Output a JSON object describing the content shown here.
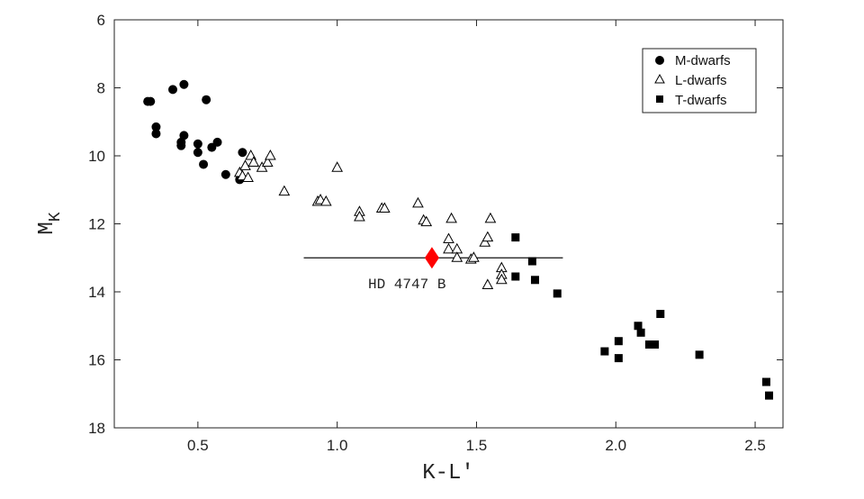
{
  "chart_data": {
    "type": "scatter",
    "xlabel": "K-L'",
    "ylabel": "M",
    "ylabel_sub": "K",
    "xlim": [
      0.2,
      2.6
    ],
    "ylim": [
      18,
      6
    ],
    "y_inverted": true,
    "xticks": [
      0.5,
      1.0,
      1.5,
      2.0,
      2.5
    ],
    "xtick_labels": [
      "0.5",
      "1.0",
      "1.5",
      "2.0",
      "2.5"
    ],
    "yticks": [
      6,
      8,
      10,
      12,
      14,
      16,
      18
    ],
    "ytick_labels": [
      "6",
      "8",
      "10",
      "12",
      "14",
      "16",
      "18"
    ],
    "grid": false,
    "legend_position": "top-right",
    "series": [
      {
        "name": "M-dwarfs",
        "marker": "filled-circle",
        "color": "#000000",
        "points": [
          [
            0.32,
            8.4
          ],
          [
            0.33,
            8.4
          ],
          [
            0.35,
            9.15
          ],
          [
            0.35,
            9.35
          ],
          [
            0.41,
            8.05
          ],
          [
            0.45,
            7.9
          ],
          [
            0.45,
            9.4
          ],
          [
            0.44,
            9.6
          ],
          [
            0.44,
            9.7
          ],
          [
            0.5,
            9.65
          ],
          [
            0.5,
            9.9
          ],
          [
            0.53,
            8.35
          ],
          [
            0.55,
            9.75
          ],
          [
            0.57,
            9.6
          ],
          [
            0.52,
            10.25
          ],
          [
            0.6,
            10.55
          ],
          [
            0.65,
            10.7
          ],
          [
            0.66,
            9.9
          ]
        ]
      },
      {
        "name": "L-dwarfs",
        "marker": "open-triangle",
        "color": "#000000",
        "points": [
          [
            0.65,
            10.5
          ],
          [
            0.66,
            10.6
          ],
          [
            0.67,
            10.3
          ],
          [
            0.68,
            10.65
          ],
          [
            0.69,
            10.0
          ],
          [
            0.7,
            10.2
          ],
          [
            0.73,
            10.35
          ],
          [
            0.75,
            10.2
          ],
          [
            0.76,
            10.0
          ],
          [
            0.81,
            11.05
          ],
          [
            0.93,
            11.35
          ],
          [
            0.94,
            11.3
          ],
          [
            0.96,
            11.35
          ],
          [
            1.0,
            10.35
          ],
          [
            1.08,
            11.65
          ],
          [
            1.08,
            11.8
          ],
          [
            1.16,
            11.55
          ],
          [
            1.17,
            11.55
          ],
          [
            1.29,
            11.4
          ],
          [
            1.31,
            11.9
          ],
          [
            1.32,
            11.95
          ],
          [
            1.4,
            12.45
          ],
          [
            1.4,
            12.75
          ],
          [
            1.41,
            11.85
          ],
          [
            1.43,
            12.75
          ],
          [
            1.43,
            13.0
          ],
          [
            1.48,
            13.05
          ],
          [
            1.49,
            13.0
          ],
          [
            1.53,
            12.55
          ],
          [
            1.54,
            12.4
          ],
          [
            1.54,
            13.8
          ],
          [
            1.55,
            11.85
          ],
          [
            1.59,
            13.3
          ],
          [
            1.59,
            13.5
          ],
          [
            1.59,
            13.65
          ]
        ]
      },
      {
        "name": "T-dwarfs",
        "marker": "filled-square",
        "color": "#000000",
        "points": [
          [
            1.64,
            12.4
          ],
          [
            1.64,
            13.55
          ],
          [
            1.7,
            13.1
          ],
          [
            1.71,
            13.65
          ],
          [
            1.79,
            14.05
          ],
          [
            1.96,
            15.75
          ],
          [
            2.01,
            15.45
          ],
          [
            2.01,
            15.95
          ],
          [
            2.08,
            15.0
          ],
          [
            2.09,
            15.2
          ],
          [
            2.12,
            15.55
          ],
          [
            2.14,
            15.55
          ],
          [
            2.16,
            14.65
          ],
          [
            2.3,
            15.85
          ],
          [
            2.54,
            16.65
          ],
          [
            2.55,
            17.05
          ]
        ]
      }
    ],
    "highlight": {
      "label": "HD 4747 B",
      "marker": "diamond",
      "color": "#ff0000",
      "x": 1.34,
      "y": 13.0,
      "xerr_low": 0.88,
      "xerr_high": 1.81
    }
  }
}
